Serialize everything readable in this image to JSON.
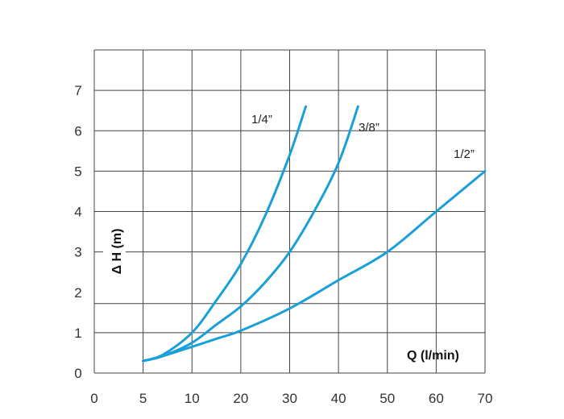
{
  "chart_data": {
    "type": "line",
    "title": "",
    "xlabel": "Q (l/min)",
    "ylabel": "Δ H (m)",
    "x_ticks": [
      0,
      5,
      10,
      20,
      30,
      40,
      50,
      60,
      70
    ],
    "x_tick_labels": [
      "0",
      "5",
      "10",
      "20",
      "30",
      "40",
      "50",
      "60",
      "70"
    ],
    "y_ticks": [
      0,
      1,
      2,
      3,
      4,
      5,
      6,
      7
    ],
    "y_tick_labels": [
      "0",
      "1",
      "2",
      "3",
      "4",
      "5",
      "6",
      "7"
    ],
    "ylim": [
      0,
      8
    ],
    "xlim": [
      0,
      70
    ],
    "x_scale": "piecewise (evenly spaced ticks)",
    "grid": true,
    "horizontal_gridlines": [
      0,
      1,
      1.72,
      3,
      4,
      5,
      6,
      7,
      8
    ],
    "line_color": "#1a9fd9",
    "series": [
      {
        "name": "1/4”",
        "points": [
          [
            5,
            0.3
          ],
          [
            7,
            0.45
          ],
          [
            10,
            1.0
          ],
          [
            15,
            1.8
          ],
          [
            20,
            2.7
          ],
          [
            25,
            3.9
          ],
          [
            30,
            5.4
          ],
          [
            33.3,
            6.6
          ]
        ]
      },
      {
        "name": "3/8”",
        "points": [
          [
            5,
            0.3
          ],
          [
            7,
            0.42
          ],
          [
            10,
            0.75
          ],
          [
            15,
            1.2
          ],
          [
            20,
            1.65
          ],
          [
            25,
            2.25
          ],
          [
            30,
            3.0
          ],
          [
            35,
            4.0
          ],
          [
            40,
            5.2
          ],
          [
            44,
            6.6
          ]
        ]
      },
      {
        "name": "1/2”",
        "points": [
          [
            5,
            0.3
          ],
          [
            7,
            0.42
          ],
          [
            10,
            0.65
          ],
          [
            15,
            0.85
          ],
          [
            20,
            1.05
          ],
          [
            30,
            1.6
          ],
          [
            40,
            2.3
          ],
          [
            50,
            3.0
          ],
          [
            60,
            4.0
          ],
          [
            70,
            5.0
          ]
        ]
      }
    ]
  }
}
